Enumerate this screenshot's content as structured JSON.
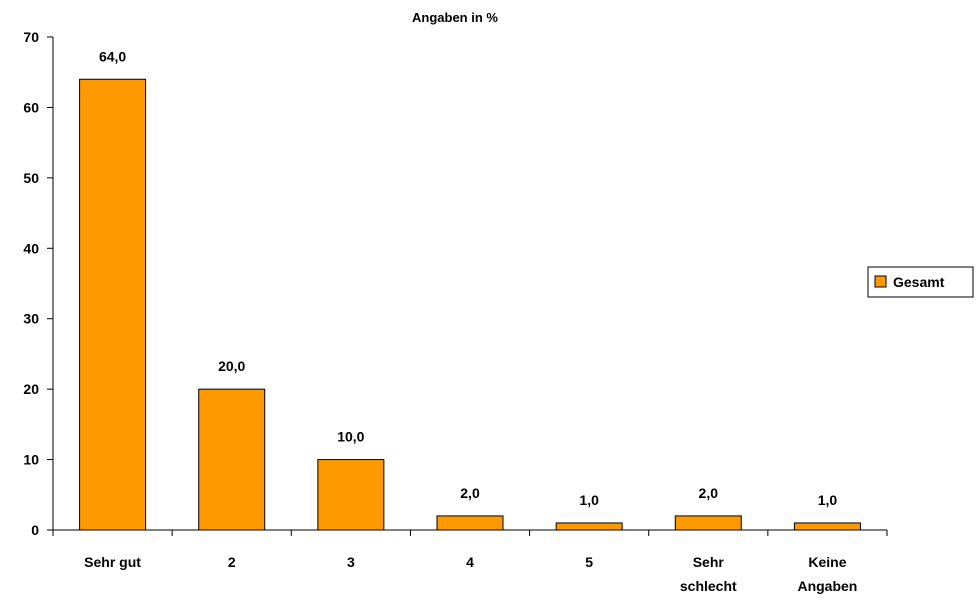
{
  "chart_data": {
    "type": "bar",
    "title": "Angaben in %",
    "xlabel": "",
    "ylabel": "",
    "categories": [
      [
        "Sehr gut"
      ],
      [
        "2"
      ],
      [
        "3"
      ],
      [
        "4"
      ],
      [
        "5"
      ],
      [
        "Sehr",
        "schlecht"
      ],
      [
        "Keine",
        "Angaben"
      ]
    ],
    "series": [
      {
        "name": "Gesamt",
        "color": "#FF9900",
        "values": [
          64.0,
          20.0,
          10.0,
          2.0,
          1.0,
          2.0,
          1.0
        ],
        "value_labels": [
          "64,0",
          "20,0",
          "10,0",
          "2,0",
          "1,0",
          "2,0",
          "1,0"
        ]
      }
    ],
    "ylim": [
      0,
      70
    ],
    "yticks": [
      0,
      10,
      20,
      30,
      40,
      50,
      60,
      70
    ],
    "grid": false,
    "legend": "right"
  }
}
